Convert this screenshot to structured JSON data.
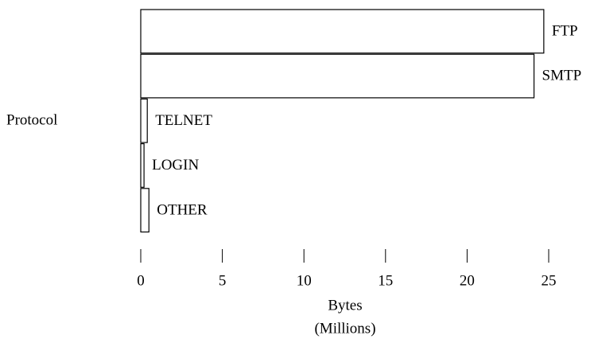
{
  "chart_data": {
    "type": "hbar",
    "ylabel": "Protocol",
    "xlabel": [
      "Bytes",
      "(Millions)"
    ],
    "categories": [
      "FTP",
      "SMTP",
      "TELNET",
      "LOGIN",
      "OTHER"
    ],
    "values": [
      24.7,
      24.1,
      0.4,
      0.2,
      0.5
    ],
    "color": "#ffffff",
    "xlim": [
      0,
      25
    ],
    "xticks": [
      0,
      5,
      10,
      15,
      20,
      25
    ]
  }
}
